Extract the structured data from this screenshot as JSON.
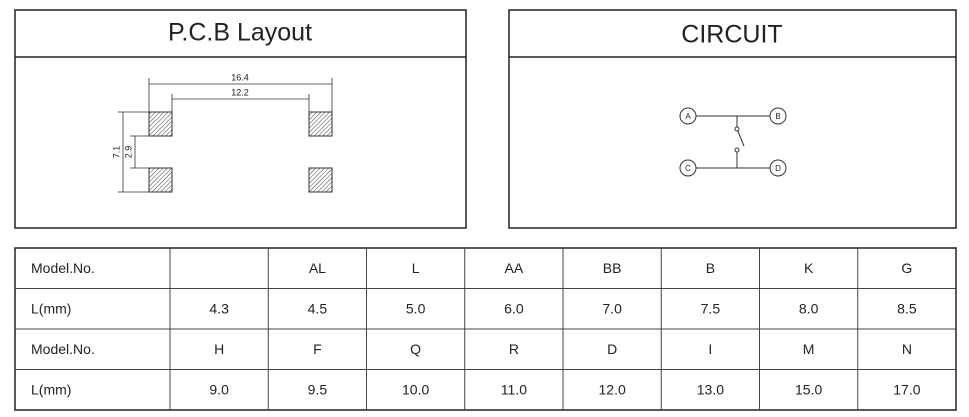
{
  "pcb_layout": {
    "title": "P.C.B Layout",
    "dimensions": [
      "16.4",
      "12.2",
      "7.1",
      "2.9"
    ]
  },
  "circuit": {
    "title": "CIRCUIT",
    "nodes": [
      "A",
      "B",
      "C",
      "D"
    ]
  },
  "table": {
    "rows": [
      [
        "Model.No.",
        null,
        "AL",
        "L",
        "AA",
        "BB",
        "B",
        "K",
        "G"
      ],
      [
        "L(mm)",
        "4.3",
        "4.5",
        "5.0",
        "6.0",
        "7.0",
        "7.5",
        "8.0",
        "8.5"
      ],
      [
        "Model.No.",
        "H",
        "F",
        "Q",
        "R",
        "D",
        "I",
        "M",
        "N"
      ],
      [
        "L(mm)",
        "9.0",
        "9.5",
        "10.0",
        "11.0",
        "12.0",
        "13.0",
        "15.0",
        "17.0"
      ]
    ]
  }
}
